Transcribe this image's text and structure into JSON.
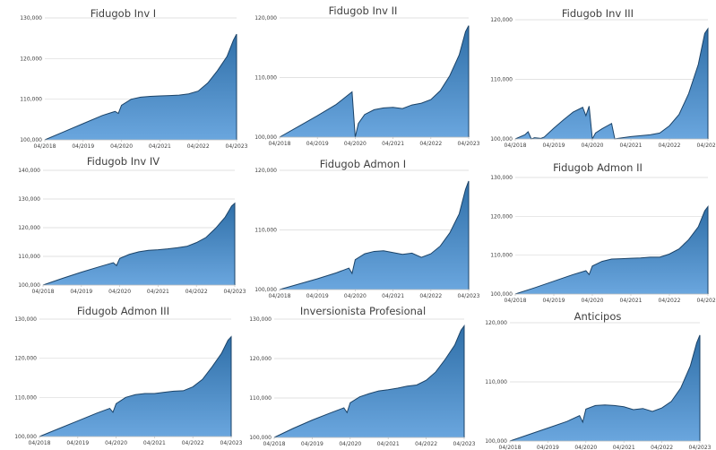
{
  "colors": {
    "area_top": "#2f6fa8",
    "area_bottom": "#6aa6de",
    "line": "#1b4368",
    "grid": "#d9d9d9",
    "axis": "#bfbfbf",
    "text": "#404040"
  },
  "chart_data": [
    {
      "type": "area",
      "title": "Fidugob Inv I",
      "x_ticks": [
        "04/2018",
        "04/2019",
        "04/2020",
        "04/2021",
        "04/2022",
        "04/2023"
      ],
      "y_ticks": [
        "100,000",
        "110,000",
        "120,000",
        "130,000"
      ],
      "ylim": [
        100000,
        130000
      ],
      "grid": true,
      "x": [
        "04/2018",
        "10/2018",
        "04/2019",
        "10/2019",
        "02/2020",
        "03/2020",
        "04/2020",
        "07/2020",
        "10/2020",
        "01/2021",
        "04/2021",
        "07/2021",
        "10/2021",
        "01/2022",
        "04/2022",
        "07/2022",
        "10/2022",
        "01/2023",
        "03/2023",
        "04/2023"
      ],
      "values": [
        100000,
        102000,
        104000,
        106000,
        107000,
        106500,
        108500,
        110000,
        110500,
        110700,
        110800,
        110900,
        111000,
        111300,
        112000,
        114000,
        117000,
        120500,
        124500,
        126000
      ]
    },
    {
      "type": "area",
      "title": "Fidugob Inv II",
      "x_ticks": [
        "04/2018",
        "04/2019",
        "04/2020",
        "04/2021",
        "04/2022",
        "04/2023"
      ],
      "y_ticks": [
        "100,000",
        "110,000",
        "120,000"
      ],
      "ylim": [
        100000,
        120000
      ],
      "grid": true,
      "x": [
        "04/2018",
        "10/2018",
        "04/2019",
        "10/2019",
        "03/2020",
        "04/2020",
        "05/2020",
        "07/2020",
        "10/2020",
        "01/2021",
        "04/2021",
        "07/2021",
        "10/2021",
        "01/2022",
        "04/2022",
        "07/2022",
        "10/2022",
        "01/2023",
        "03/2023",
        "04/2023"
      ],
      "values": [
        100000,
        101800,
        103600,
        105500,
        107600,
        100000,
        102300,
        103800,
        104600,
        104900,
        105000,
        104800,
        105400,
        105700,
        106300,
        107800,
        110300,
        113800,
        117700,
        118700
      ]
    },
    {
      "type": "area",
      "title": "Fidugob Inv III",
      "x_ticks": [
        "04/2018",
        "04/2019",
        "04/2020",
        "04/2021",
        "04/2022",
        "04/2023"
      ],
      "y_ticks": [
        "100,000",
        "110,000",
        "120,000"
      ],
      "ylim": [
        100000,
        120000
      ],
      "grid": true,
      "x": [
        "04/2018",
        "07/2018",
        "08/2018",
        "09/2018",
        "10/2018",
        "12/2018",
        "01/2019",
        "04/2019",
        "07/2019",
        "10/2019",
        "01/2020",
        "02/2020",
        "03/2020",
        "04/2020",
        "05/2020",
        "07/2020",
        "10/2020",
        "11/2020",
        "12/2020",
        "04/2021",
        "10/2021",
        "01/2022",
        "04/2022",
        "07/2022",
        "10/2022",
        "01/2023",
        "03/2023",
        "04/2023"
      ],
      "values": [
        100000,
        100700,
        101200,
        100000,
        100200,
        100100,
        100300,
        101800,
        103200,
        104500,
        105300,
        103900,
        105500,
        100000,
        101000,
        101700,
        102600,
        100000,
        100100,
        100400,
        100700,
        101000,
        102200,
        104100,
        107600,
        112500,
        117700,
        118500
      ]
    },
    {
      "type": "area",
      "title": "Fidugob Inv IV",
      "x_ticks": [
        "04/2018",
        "04/2019",
        "04/2020",
        "04/2021",
        "04/2022",
        "04/2023"
      ],
      "y_ticks": [
        "100,000",
        "110,000",
        "120,000",
        "130,000",
        "140,000"
      ],
      "ylim": [
        100000,
        140000
      ],
      "grid": true,
      "x": [
        "04/2018",
        "10/2018",
        "04/2019",
        "10/2019",
        "02/2020",
        "03/2020",
        "04/2020",
        "07/2020",
        "10/2020",
        "01/2021",
        "04/2021",
        "07/2021",
        "10/2021",
        "01/2022",
        "04/2022",
        "07/2022",
        "10/2022",
        "01/2023",
        "03/2023",
        "04/2023"
      ],
      "values": [
        100000,
        102300,
        104500,
        106500,
        107800,
        106800,
        109300,
        110700,
        111600,
        112100,
        112300,
        112600,
        113000,
        113500,
        114800,
        116600,
        119800,
        123700,
        127500,
        128500
      ]
    },
    {
      "type": "area",
      "title": "Fidugob Admon I",
      "x_ticks": [
        "04/2018",
        "04/2019",
        "04/2020",
        "04/2021",
        "04/2022",
        "04/2023"
      ],
      "y_ticks": [
        "100,000",
        "110,000",
        "120,000"
      ],
      "ylim": [
        100000,
        120000
      ],
      "grid": true,
      "x": [
        "04/2018",
        "10/2018",
        "04/2019",
        "10/2019",
        "02/2020",
        "03/2020",
        "04/2020",
        "07/2020",
        "10/2020",
        "01/2021",
        "04/2021",
        "07/2021",
        "10/2021",
        "01/2022",
        "04/2022",
        "07/2022",
        "10/2022",
        "01/2023",
        "03/2023",
        "04/2023"
      ],
      "values": [
        100000,
        100900,
        101800,
        102800,
        103600,
        102700,
        105000,
        106000,
        106400,
        106500,
        106200,
        105900,
        106100,
        105400,
        106000,
        107300,
        109500,
        112700,
        116800,
        118200
      ]
    },
    {
      "type": "area",
      "title": "Fidugob Admon II",
      "x_ticks": [
        "04/2018",
        "04/2019",
        "04/2020",
        "04/2021",
        "04/2022",
        "04/2023"
      ],
      "y_ticks": [
        "100,000",
        "110,000",
        "120,000",
        "130,000"
      ],
      "ylim": [
        100000,
        130000
      ],
      "grid": true,
      "x": [
        "04/2018",
        "10/2018",
        "04/2019",
        "10/2019",
        "02/2020",
        "03/2020",
        "04/2020",
        "07/2020",
        "10/2020",
        "01/2021",
        "04/2021",
        "07/2021",
        "10/2021",
        "01/2022",
        "04/2022",
        "07/2022",
        "10/2022",
        "01/2023",
        "03/2023",
        "04/2023"
      ],
      "values": [
        100000,
        101600,
        103300,
        105000,
        106000,
        105000,
        107200,
        108400,
        109000,
        109100,
        109200,
        109300,
        109500,
        109500,
        110300,
        111600,
        114000,
        117300,
        121400,
        122500
      ]
    },
    {
      "type": "area",
      "title": "Fidugob Admon III",
      "x_ticks": [
        "04/2018",
        "04/2019",
        "04/2020",
        "04/2021",
        "04/2022",
        "04/2023"
      ],
      "y_ticks": [
        "100,000",
        "110,000",
        "120,000",
        "130,000"
      ],
      "ylim": [
        100000,
        130000
      ],
      "grid": true,
      "x": [
        "04/2018",
        "10/2018",
        "04/2019",
        "10/2019",
        "02/2020",
        "03/2020",
        "04/2020",
        "07/2020",
        "10/2020",
        "01/2021",
        "04/2021",
        "07/2021",
        "10/2021",
        "01/2022",
        "04/2022",
        "07/2022",
        "10/2022",
        "01/2023",
        "03/2023",
        "04/2023"
      ],
      "values": [
        100000,
        102000,
        104000,
        106000,
        107200,
        106200,
        108400,
        110000,
        110700,
        111000,
        111000,
        111300,
        111600,
        111700,
        112700,
        114600,
        117800,
        121300,
        124600,
        125500
      ]
    },
    {
      "type": "area",
      "title": "Inversionista Profesional",
      "x_ticks": [
        "04/2018",
        "04/2019",
        "04/2020",
        "04/2021",
        "04/2022",
        "04/2023"
      ],
      "y_ticks": [
        "100,000",
        "110,000",
        "120,000",
        "130,000"
      ],
      "ylim": [
        100000,
        130000
      ],
      "grid": true,
      "x": [
        "04/2018",
        "10/2018",
        "04/2019",
        "10/2019",
        "02/2020",
        "03/2020",
        "04/2020",
        "07/2020",
        "10/2020",
        "01/2021",
        "04/2021",
        "07/2021",
        "10/2021",
        "01/2022",
        "04/2022",
        "07/2022",
        "10/2022",
        "01/2023",
        "03/2023",
        "04/2023"
      ],
      "values": [
        100000,
        102300,
        104400,
        106300,
        107500,
        106300,
        108800,
        110300,
        111100,
        111800,
        112100,
        112500,
        113000,
        113300,
        114500,
        116600,
        119800,
        123400,
        127200,
        128300
      ]
    },
    {
      "type": "area",
      "title": "Anticipos",
      "x_ticks": [
        "04/2018",
        "04/2019",
        "04/2020",
        "04/2021",
        "04/2022",
        "04/2023"
      ],
      "y_ticks": [
        "100,000",
        "110,000",
        "120,000"
      ],
      "ylim": [
        100000,
        120000
      ],
      "grid": true,
      "x": [
        "04/2018",
        "10/2018",
        "04/2019",
        "10/2019",
        "02/2020",
        "03/2020",
        "04/2020",
        "07/2020",
        "10/2020",
        "01/2021",
        "04/2021",
        "07/2021",
        "10/2021",
        "01/2022",
        "04/2022",
        "07/2022",
        "10/2022",
        "01/2023",
        "03/2023",
        "04/2023"
      ],
      "values": [
        100000,
        101100,
        102200,
        103300,
        104300,
        103200,
        105400,
        106000,
        106100,
        106000,
        105800,
        105300,
        105500,
        105000,
        105600,
        106700,
        109000,
        112700,
        116600,
        117900
      ]
    }
  ]
}
